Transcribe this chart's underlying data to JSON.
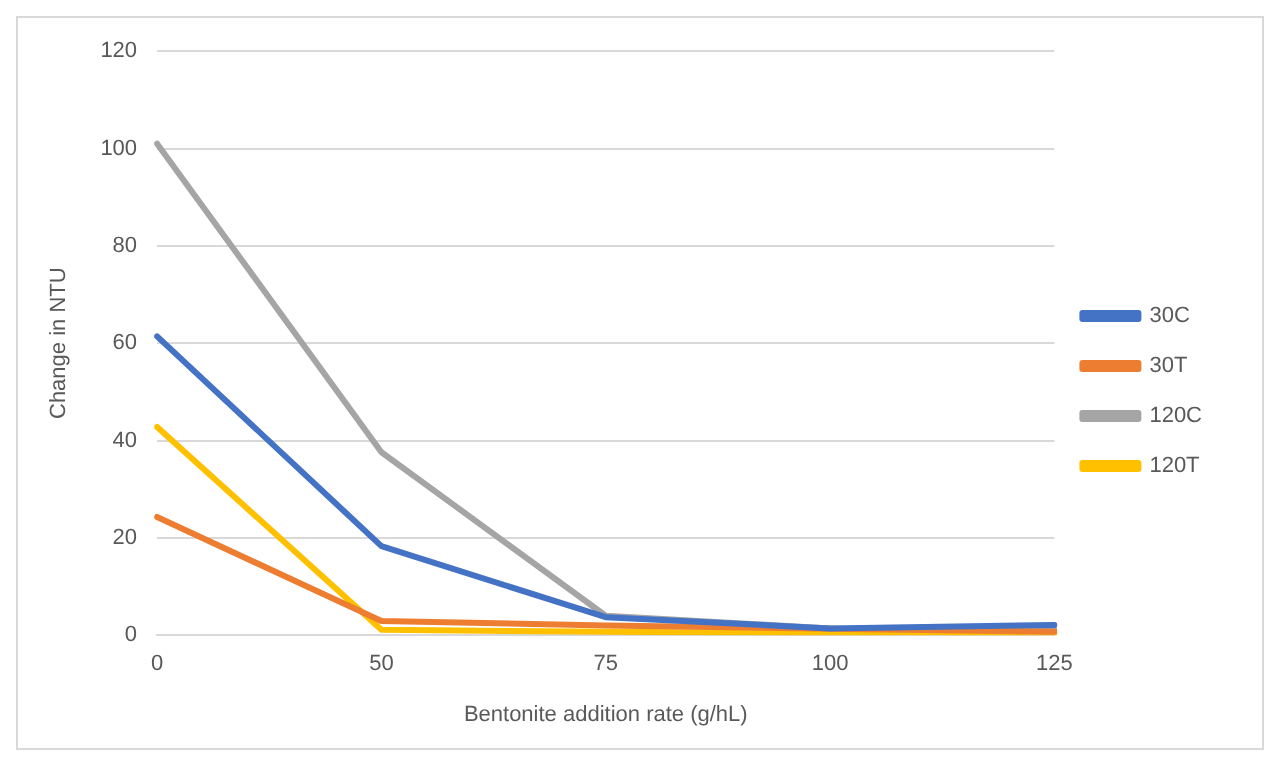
{
  "chart_data": {
    "type": "line",
    "xlabel": "Bentonite addition rate (g/hL)",
    "ylabel": "Change in NTU",
    "categories": [
      "0",
      "50",
      "75",
      "100",
      "125"
    ],
    "series": [
      {
        "name": "30C",
        "color": "#4472c4",
        "values": [
          61.4,
          18.3,
          3.7,
          1.4,
          2.1
        ]
      },
      {
        "name": "30T",
        "color": "#ed7d31",
        "values": [
          24.3,
          2.9,
          2,
          1.3,
          0.7
        ]
      },
      {
        "name": "120C",
        "color": "#a5a5a5",
        "values": [
          101,
          37.6,
          4,
          1.4,
          1.1
        ]
      },
      {
        "name": "120T",
        "color": "#ffc000",
        "values": [
          42.8,
          1.1,
          0.7,
          0.4,
          0.3
        ]
      }
    ],
    "ylim": [
      0,
      120
    ],
    "yticks": [
      0,
      20,
      40,
      60,
      80,
      100,
      120
    ],
    "grid": "y",
    "legend": "right",
    "marker": "none",
    "line_style": "solid"
  }
}
